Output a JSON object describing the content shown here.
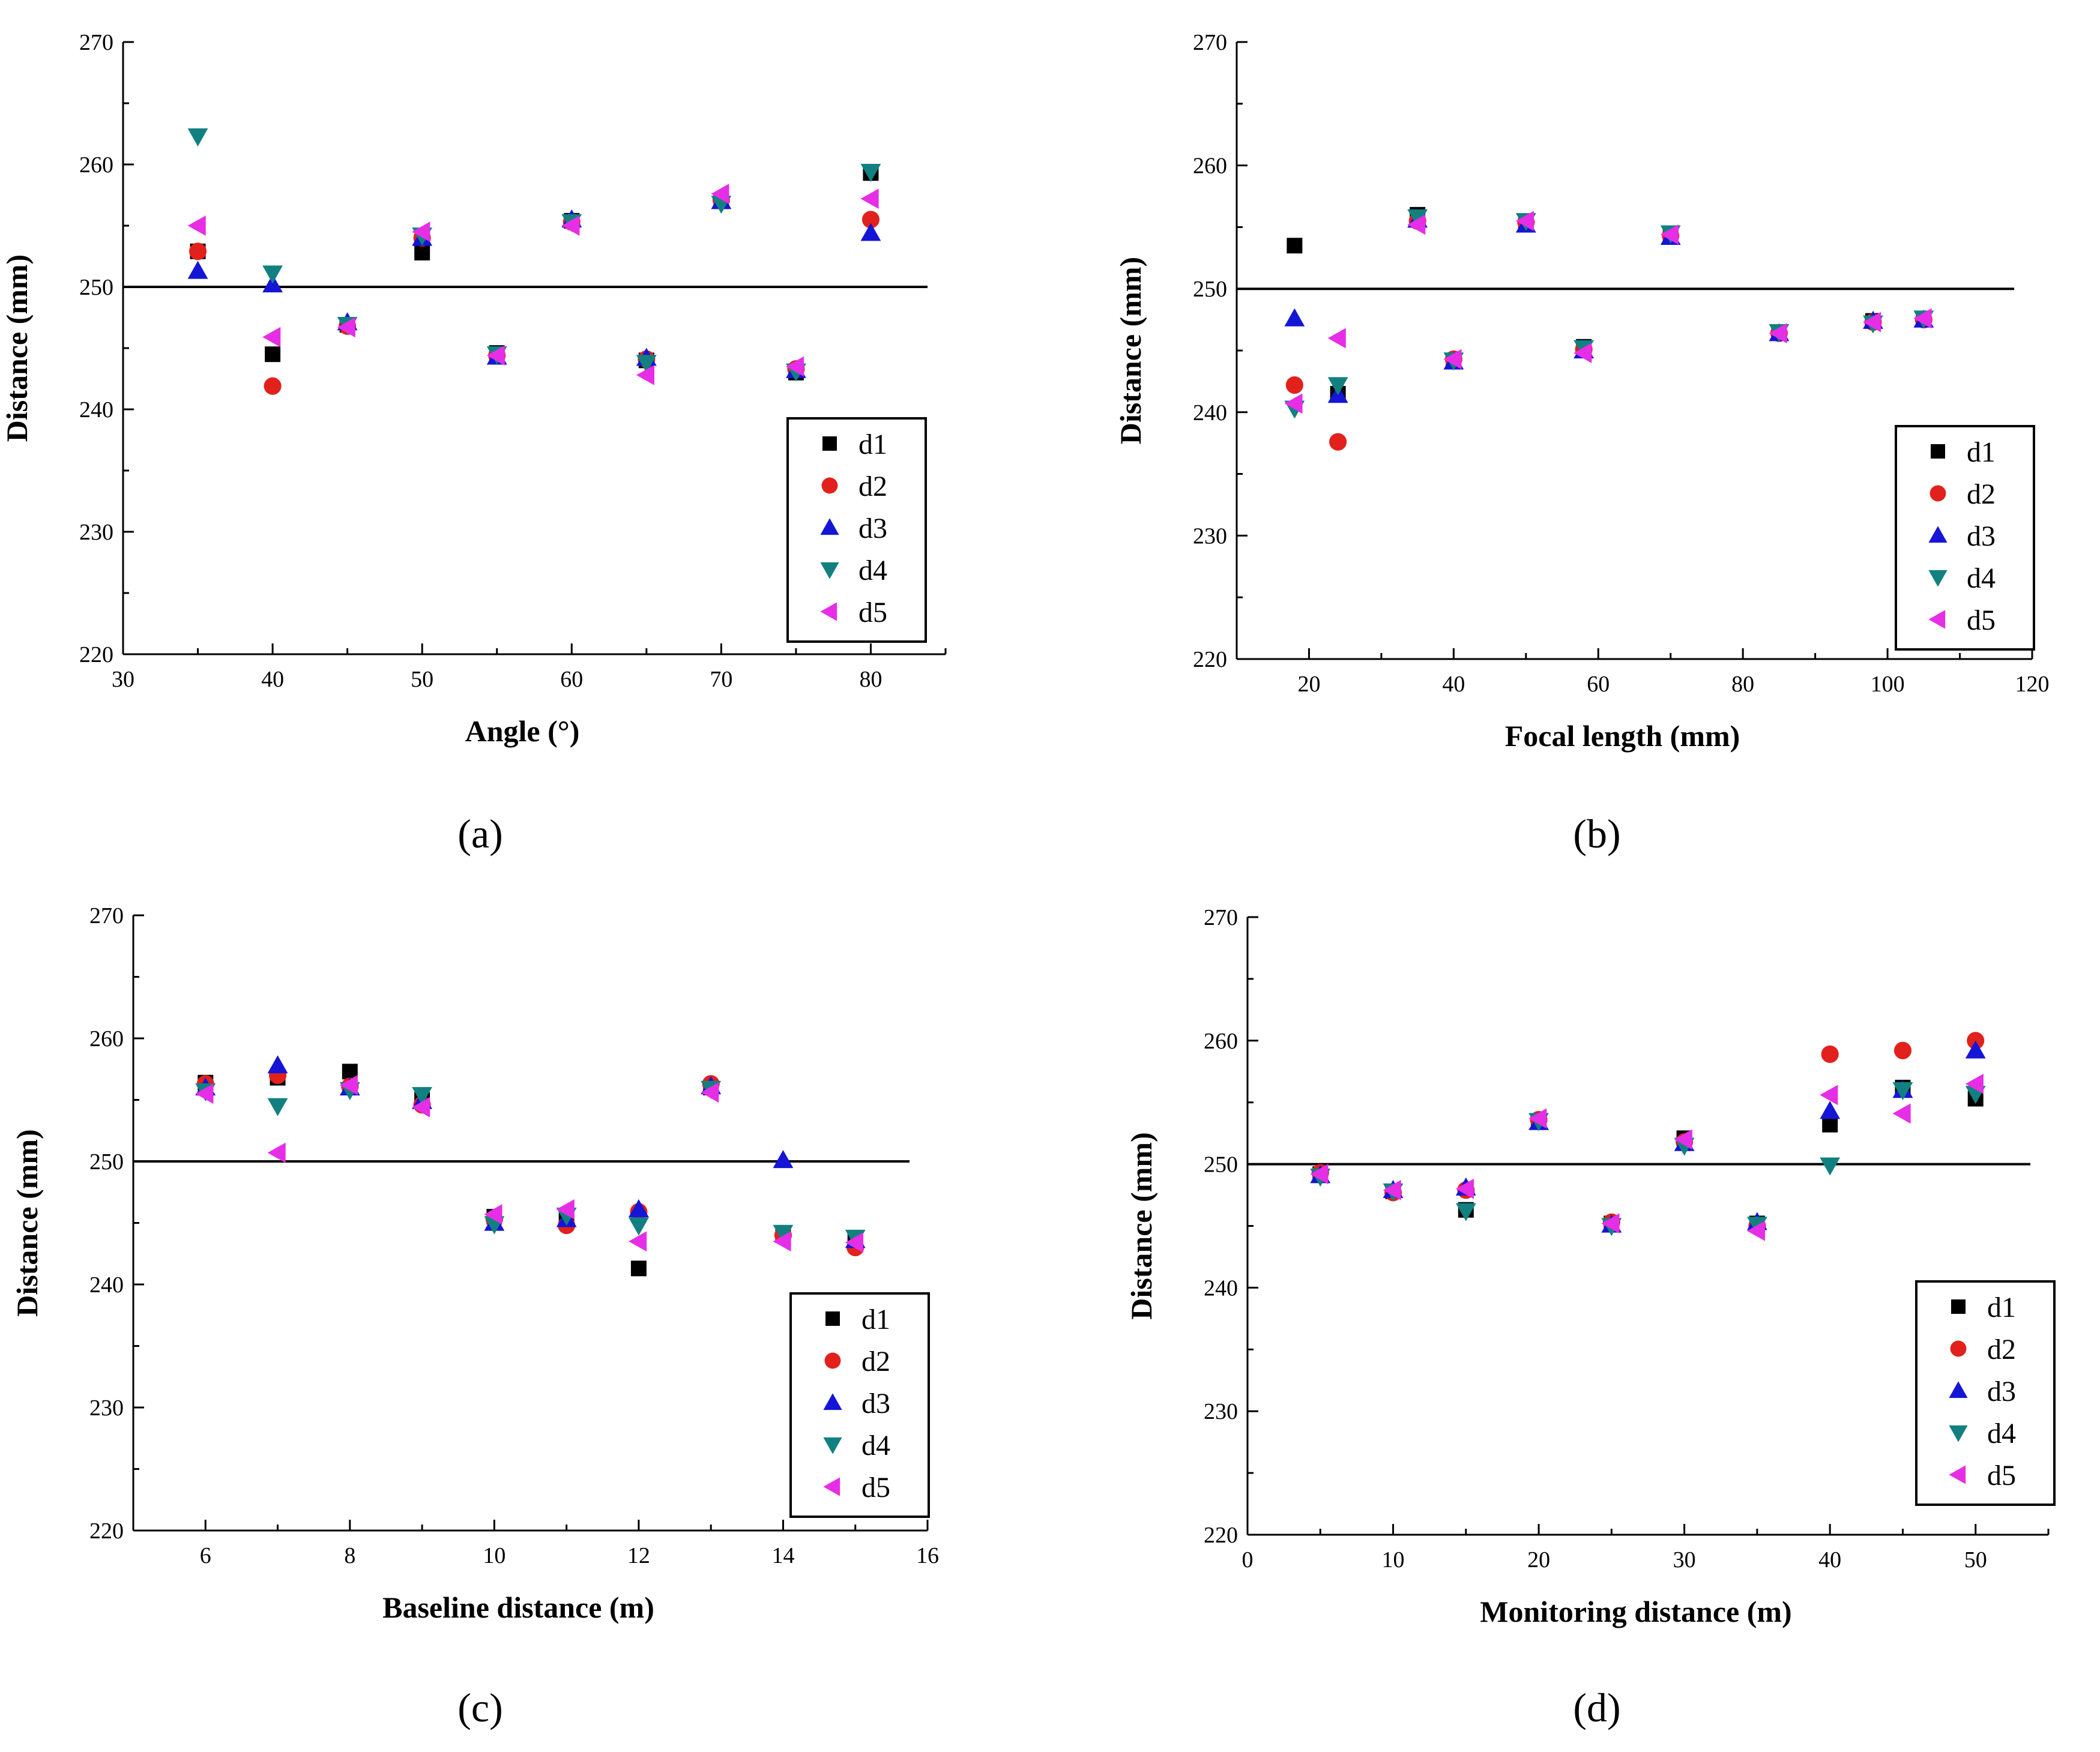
{
  "figure": {
    "colors": {
      "d1": "#000000",
      "d2": "#e2211c",
      "d3": "#1515d6",
      "d4": "#128080",
      "d5": "#e62ee6",
      "axis": "#000000",
      "reference": "#000000"
    }
  },
  "chart_data": [
    {
      "type": "scatter",
      "panel_label": "(a)",
      "xlabel": "Angle (°)",
      "ylabel": "Distance (mm)",
      "xlim": [
        30,
        85
      ],
      "ylim": [
        220,
        270
      ],
      "xticks": [
        30,
        40,
        50,
        60,
        70,
        80
      ],
      "yticks": [
        220,
        230,
        240,
        250,
        260,
        270
      ],
      "reference_y": 250,
      "legend": [
        "d1",
        "d2",
        "d3",
        "d4",
        "d5"
      ],
      "legend_position": "bottom-right",
      "series": [
        {
          "name": "d1",
          "marker": "square",
          "x": [
            35,
            40,
            45,
            50,
            55,
            60,
            65,
            70,
            75,
            80
          ],
          "y": [
            252.9,
            244.5,
            246.9,
            252.8,
            244.6,
            255.4,
            244.0,
            257.0,
            243.0,
            259.3
          ]
        },
        {
          "name": "d2",
          "marker": "circle",
          "x": [
            35,
            40,
            45,
            50,
            55,
            60,
            65,
            70,
            75,
            80
          ],
          "y": [
            252.9,
            241.9,
            246.8,
            254.0,
            244.4,
            255.3,
            244.1,
            257.1,
            243.3,
            255.5
          ]
        },
        {
          "name": "d3",
          "marker": "triangle-up",
          "x": [
            35,
            40,
            45,
            50,
            55,
            60,
            65,
            70,
            75,
            80
          ],
          "y": [
            251.3,
            250.2,
            247.1,
            254.0,
            244.3,
            255.5,
            244.2,
            257.0,
            243.2,
            254.4
          ]
        },
        {
          "name": "d4",
          "marker": "triangle-down",
          "x": [
            35,
            40,
            45,
            50,
            55,
            60,
            65,
            70,
            75,
            80
          ],
          "y": [
            262.3,
            251.1,
            246.9,
            254.2,
            244.5,
            255.3,
            243.8,
            256.8,
            243.1,
            259.4
          ]
        },
        {
          "name": "d5",
          "marker": "triangle-left",
          "x": [
            35,
            40,
            45,
            50,
            55,
            60,
            65,
            70,
            75,
            80
          ],
          "y": [
            255.0,
            245.9,
            246.7,
            254.5,
            244.4,
            255.0,
            242.8,
            257.6,
            243.5,
            257.2
          ]
        }
      ]
    },
    {
      "type": "scatter",
      "panel_label": "(b)",
      "xlabel": "Focal length (mm)",
      "ylabel": "Distance (mm)",
      "xlim": [
        10,
        120
      ],
      "ylim": [
        220,
        270
      ],
      "xticks": [
        20,
        40,
        60,
        80,
        100,
        120
      ],
      "yticks": [
        220,
        230,
        240,
        250,
        260,
        270
      ],
      "reference_y": 250,
      "legend": [
        "d1",
        "d2",
        "d3",
        "d4",
        "d5"
      ],
      "legend_position": "bottom-right",
      "series": [
        {
          "name": "d1",
          "marker": "square",
          "x": [
            18,
            24,
            35,
            40,
            50,
            58,
            70,
            85,
            98,
            105
          ],
          "y": [
            253.5,
            241.5,
            256.0,
            244.2,
            255.3,
            245.3,
            254.4,
            246.5,
            247.4,
            247.6
          ]
        },
        {
          "name": "d2",
          "marker": "circle",
          "x": [
            18,
            24,
            35,
            40,
            50,
            58,
            70,
            85,
            98,
            105
          ],
          "y": [
            242.2,
            237.6,
            255.5,
            244.3,
            255.4,
            245.1,
            254.3,
            246.4,
            247.3,
            247.5
          ]
        },
        {
          "name": "d3",
          "marker": "triangle-up",
          "x": [
            18,
            24,
            35,
            40,
            50,
            58,
            70,
            85,
            98,
            105
          ],
          "y": [
            247.6,
            241.4,
            255.6,
            244.1,
            255.2,
            245.0,
            254.2,
            246.4,
            247.4,
            247.5
          ]
        },
        {
          "name": "d4",
          "marker": "triangle-down",
          "x": [
            18,
            24,
            35,
            40,
            50,
            58,
            70,
            85,
            98,
            105
          ],
          "y": [
            240.3,
            242.2,
            255.8,
            244.2,
            255.5,
            245.2,
            254.5,
            246.5,
            247.2,
            247.6
          ]
        },
        {
          "name": "d5",
          "marker": "triangle-left",
          "x": [
            18,
            24,
            35,
            40,
            50,
            58,
            70,
            85,
            98,
            105
          ],
          "y": [
            240.7,
            246.0,
            255.2,
            244.3,
            255.5,
            244.8,
            254.4,
            246.4,
            247.3,
            247.6
          ]
        }
      ]
    },
    {
      "type": "scatter",
      "panel_label": "(c)",
      "xlabel": "Baseline distance (m)",
      "ylabel": "Distance (mm)",
      "xlim": [
        5,
        16
      ],
      "ylim": [
        220,
        270
      ],
      "xticks": [
        6,
        8,
        10,
        12,
        14,
        16
      ],
      "yticks": [
        220,
        230,
        240,
        250,
        260,
        270
      ],
      "reference_y": 250,
      "legend": [
        "d1",
        "d2",
        "d3",
        "d4",
        "d5"
      ],
      "legend_position": "bottom-right",
      "series": [
        {
          "name": "d1",
          "marker": "square",
          "x": [
            6,
            7,
            8,
            9,
            10,
            11,
            12,
            13,
            14,
            15
          ],
          "y": [
            256.4,
            256.8,
            257.3,
            255.0,
            245.5,
            245.2,
            241.3,
            256.0,
            244.0,
            243.7
          ]
        },
        {
          "name": "d2",
          "marker": "circle",
          "x": [
            6,
            7,
            8,
            9,
            10,
            11,
            12,
            13,
            14,
            15
          ],
          "y": [
            256.3,
            257.0,
            256.1,
            254.6,
            245.3,
            244.8,
            245.9,
            256.3,
            244.0,
            243.0
          ]
        },
        {
          "name": "d3",
          "marker": "triangle-up",
          "x": [
            6,
            7,
            8,
            9,
            10,
            11,
            12,
            13,
            14,
            15
          ],
          "y": [
            256.0,
            257.8,
            256.0,
            254.9,
            245.0,
            245.3,
            246.1,
            256.1,
            250.1,
            243.6
          ]
        },
        {
          "name": "d4",
          "marker": "triangle-down",
          "x": [
            6,
            7,
            8,
            9,
            10,
            11,
            12,
            13,
            14,
            15
          ],
          "y": [
            255.7,
            254.5,
            255.8,
            255.4,
            244.9,
            245.6,
            244.8,
            255.9,
            244.2,
            243.8
          ]
        },
        {
          "name": "d5",
          "marker": "triangle-left",
          "x": [
            6,
            7,
            8,
            9,
            10,
            11,
            12,
            13,
            14,
            15
          ],
          "y": [
            255.5,
            250.7,
            256.2,
            254.4,
            245.7,
            246.1,
            243.5,
            255.6,
            243.5,
            243.4
          ]
        }
      ]
    },
    {
      "type": "scatter",
      "panel_label": "(d)",
      "xlabel": "Monitoring distance (m)",
      "ylabel": "Distance (mm)",
      "xlim": [
        0,
        55
      ],
      "ylim": [
        220,
        270
      ],
      "xticks": [
        0,
        10,
        20,
        30,
        40,
        50
      ],
      "yticks": [
        220,
        230,
        240,
        250,
        260,
        270
      ],
      "reference_y": 250,
      "legend": [
        "d1",
        "d2",
        "d3",
        "d4",
        "d5"
      ],
      "legend_position": "bottom-right",
      "series": [
        {
          "name": "d1",
          "marker": "square",
          "x": [
            5,
            10,
            15,
            20,
            25,
            30,
            35,
            40,
            45,
            50
          ],
          "y": [
            249.2,
            247.8,
            246.3,
            253.5,
            245.2,
            252.1,
            245.2,
            253.2,
            256.2,
            255.3
          ]
        },
        {
          "name": "d2",
          "marker": "circle",
          "x": [
            5,
            10,
            15,
            20,
            25,
            30,
            35,
            40,
            45,
            50
          ],
          "y": [
            249.3,
            247.7,
            247.9,
            253.6,
            245.3,
            251.8,
            245.0,
            258.9,
            259.2,
            260.0
          ]
        },
        {
          "name": "d3",
          "marker": "triangle-up",
          "x": [
            5,
            10,
            15,
            20,
            25,
            30,
            35,
            40,
            45,
            50
          ],
          "y": [
            249.1,
            247.9,
            248.1,
            253.4,
            245.1,
            251.7,
            245.3,
            254.3,
            256.0,
            259.2
          ]
        },
        {
          "name": "d4",
          "marker": "triangle-down",
          "x": [
            5,
            10,
            15,
            20,
            25,
            30,
            35,
            40,
            45,
            50
          ],
          "y": [
            249.0,
            247.8,
            246.2,
            253.5,
            245.0,
            251.5,
            245.1,
            249.9,
            256.0,
            255.7
          ]
        },
        {
          "name": "d5",
          "marker": "triangle-left",
          "x": [
            5,
            10,
            15,
            20,
            25,
            30,
            35,
            40,
            45,
            50
          ],
          "y": [
            249.2,
            247.9,
            248.0,
            253.7,
            245.2,
            252.0,
            244.6,
            255.6,
            254.1,
            256.5
          ]
        }
      ]
    }
  ]
}
